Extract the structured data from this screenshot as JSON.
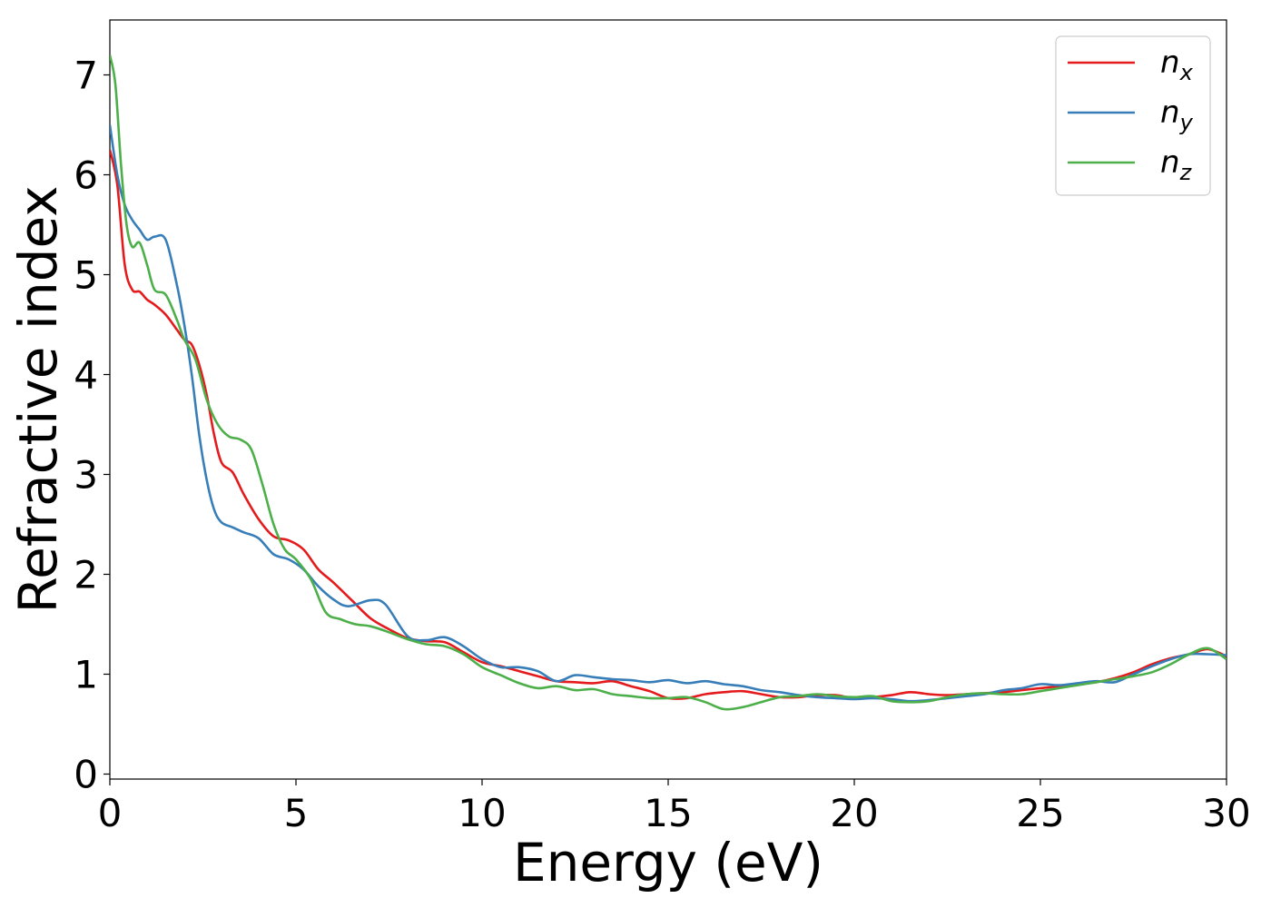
{
  "chart_data": {
    "type": "line",
    "title": "",
    "xlabel": "Energy (eV)",
    "ylabel": "Refractive index",
    "xlim": [
      0,
      30
    ],
    "ylim": [
      -0.05,
      7.55
    ],
    "xticks": [
      0,
      5,
      10,
      15,
      20,
      25,
      30
    ],
    "yticks": [
      0,
      1,
      2,
      3,
      4,
      5,
      6,
      7
    ],
    "grid": false,
    "legend_position": "top-right",
    "series": [
      {
        "name": "n_x",
        "label_base": "n",
        "label_sub": "x",
        "color": "#e41a1c",
        "x": [
          0,
          0.2,
          0.4,
          0.6,
          0.8,
          1.0,
          1.2,
          1.5,
          1.8,
          2.0,
          2.2,
          2.4,
          2.6,
          2.8,
          3.0,
          3.3,
          3.6,
          4.0,
          4.4,
          4.8,
          5.2,
          5.6,
          6.0,
          6.5,
          7.0,
          7.5,
          8.0,
          8.5,
          9.0,
          9.5,
          10,
          10.5,
          11,
          11.5,
          12,
          12.5,
          13,
          13.5,
          14,
          14.5,
          15,
          15.5,
          16,
          16.5,
          17,
          17.5,
          18,
          18.5,
          19,
          19.5,
          20,
          20.5,
          21,
          21.5,
          22,
          22.5,
          23,
          23.5,
          24,
          24.5,
          25,
          25.5,
          26,
          26.5,
          27,
          27.5,
          28,
          28.5,
          29,
          29.5,
          30
        ],
        "y": [
          6.25,
          5.9,
          5.1,
          4.85,
          4.83,
          4.75,
          4.7,
          4.6,
          4.45,
          4.35,
          4.3,
          4.1,
          3.8,
          3.4,
          3.12,
          3.02,
          2.8,
          2.55,
          2.38,
          2.34,
          2.25,
          2.05,
          1.92,
          1.74,
          1.56,
          1.45,
          1.36,
          1.33,
          1.32,
          1.22,
          1.12,
          1.08,
          1.03,
          0.98,
          0.93,
          0.92,
          0.91,
          0.93,
          0.88,
          0.83,
          0.76,
          0.76,
          0.8,
          0.82,
          0.83,
          0.8,
          0.77,
          0.77,
          0.79,
          0.79,
          0.76,
          0.77,
          0.79,
          0.82,
          0.8,
          0.79,
          0.8,
          0.81,
          0.82,
          0.84,
          0.86,
          0.88,
          0.9,
          0.92,
          0.96,
          1.02,
          1.1,
          1.16,
          1.2,
          1.25,
          1.18
        ]
      },
      {
        "name": "n_y",
        "label_base": "n",
        "label_sub": "y",
        "color": "#377eb8",
        "x": [
          0,
          0.2,
          0.4,
          0.6,
          0.8,
          1.0,
          1.2,
          1.5,
          1.8,
          2.0,
          2.2,
          2.4,
          2.6,
          2.8,
          3.0,
          3.3,
          3.6,
          4.0,
          4.4,
          4.8,
          5.2,
          5.6,
          6.0,
          6.4,
          7.0,
          7.4,
          8.0,
          8.5,
          9.0,
          9.5,
          10,
          10.5,
          11,
          11.5,
          12,
          12.5,
          13,
          13.5,
          14,
          14.5,
          15,
          15.5,
          16,
          16.5,
          17,
          17.5,
          18,
          18.5,
          19,
          19.5,
          20,
          20.5,
          21,
          21.5,
          22,
          22.5,
          23,
          23.5,
          24,
          24.5,
          25,
          25.5,
          26,
          26.5,
          27,
          27.5,
          28,
          28.5,
          29,
          29.5,
          30
        ],
        "y": [
          6.5,
          6.0,
          5.7,
          5.55,
          5.45,
          5.35,
          5.38,
          5.35,
          4.9,
          4.5,
          4.0,
          3.4,
          2.95,
          2.65,
          2.52,
          2.47,
          2.42,
          2.36,
          2.2,
          2.15,
          2.05,
          1.88,
          1.75,
          1.68,
          1.74,
          1.7,
          1.38,
          1.34,
          1.37,
          1.28,
          1.15,
          1.07,
          1.07,
          1.03,
          0.93,
          0.99,
          0.97,
          0.95,
          0.94,
          0.92,
          0.94,
          0.91,
          0.93,
          0.9,
          0.88,
          0.84,
          0.82,
          0.79,
          0.77,
          0.76,
          0.75,
          0.76,
          0.75,
          0.73,
          0.74,
          0.76,
          0.78,
          0.8,
          0.84,
          0.86,
          0.9,
          0.89,
          0.91,
          0.93,
          0.92,
          1.0,
          1.08,
          1.15,
          1.2,
          1.2,
          1.19
        ]
      },
      {
        "name": "n_z",
        "label_base": "n",
        "label_sub": "z",
        "color": "#4daf4a",
        "x": [
          0,
          0.15,
          0.3,
          0.45,
          0.6,
          0.8,
          1.0,
          1.2,
          1.5,
          1.8,
          2.0,
          2.3,
          2.6,
          2.9,
          3.2,
          3.5,
          3.8,
          4.1,
          4.4,
          4.7,
          5.0,
          5.4,
          5.8,
          6.2,
          6.6,
          7.0,
          7.5,
          8.0,
          8.5,
          9.0,
          9.5,
          10,
          10.5,
          11,
          11.5,
          12,
          12.5,
          13,
          13.5,
          14,
          14.5,
          15,
          15.5,
          16,
          16.5,
          17,
          17.5,
          18,
          18.5,
          19,
          19.5,
          20,
          20.5,
          21,
          21.5,
          22,
          22.5,
          23,
          23.5,
          24,
          24.5,
          25,
          25.5,
          26,
          26.5,
          27,
          27.5,
          28,
          28.5,
          29,
          29.5,
          30
        ],
        "y": [
          7.2,
          6.9,
          6.1,
          5.5,
          5.28,
          5.32,
          5.1,
          4.85,
          4.8,
          4.55,
          4.35,
          4.15,
          3.75,
          3.5,
          3.38,
          3.35,
          3.25,
          2.9,
          2.5,
          2.25,
          2.15,
          1.95,
          1.62,
          1.55,
          1.5,
          1.48,
          1.42,
          1.35,
          1.3,
          1.28,
          1.2,
          1.07,
          0.99,
          0.91,
          0.86,
          0.88,
          0.84,
          0.85,
          0.8,
          0.78,
          0.76,
          0.76,
          0.77,
          0.72,
          0.65,
          0.67,
          0.72,
          0.77,
          0.78,
          0.8,
          0.78,
          0.77,
          0.78,
          0.73,
          0.72,
          0.73,
          0.77,
          0.8,
          0.81,
          0.8,
          0.8,
          0.83,
          0.86,
          0.89,
          0.92,
          0.95,
          0.98,
          1.02,
          1.1,
          1.2,
          1.26,
          1.15
        ]
      }
    ]
  }
}
